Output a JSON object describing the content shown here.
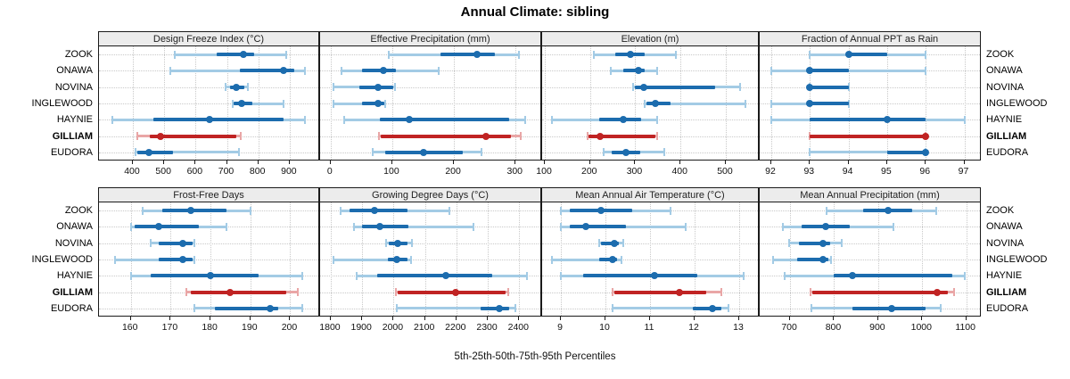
{
  "title": "Annual Climate: sibling",
  "caption": "5th-25th-50th-75th-95th Percentiles",
  "sites": [
    "ZOOK",
    "ONAWA",
    "NOVINA",
    "INGLEWOOD",
    "HAYNIE",
    "GILLIAM",
    "EUDORA"
  ],
  "highlight_site": "GILLIAM",
  "percentile_labels": [
    "5th",
    "25th",
    "50th",
    "75th",
    "95th"
  ],
  "colors": {
    "series_blue": "#1c6cae",
    "series_blue_light": "#a3cbe5",
    "highlight_red": "#c02323",
    "highlight_red_light": "#e9a6a6",
    "strip_background": "#ececec",
    "panel_border": "#1a1a1a",
    "gridline": "#c9c9c9"
  },
  "chart_data": [
    {
      "type": "dotplot-interval",
      "title": "Design Freeze Index (°C)",
      "row": 0,
      "col": 0,
      "xlim": [
        292,
        997
      ],
      "ticks": [
        400,
        500,
        600,
        700,
        800,
        900
      ],
      "values": {
        "ZOOK": [
          535,
          668,
          753,
          788,
          888
        ],
        "ONAWA": [
          520,
          740,
          880,
          915,
          950
        ],
        "NOVINA": [
          697,
          711,
          730,
          755,
          766
        ],
        "INGLEWOOD": [
          718,
          721,
          748,
          780,
          881
        ],
        "HAYNIE": [
          335,
          465,
          645,
          880,
          950
        ],
        "GILLIAM": [
          413,
          455,
          488,
          730,
          744
        ],
        "EUDORA": [
          409,
          415,
          450,
          528,
          737
        ]
      }
    },
    {
      "type": "dotplot-interval",
      "title": "Effective Precipitation (mm)",
      "row": 0,
      "col": 1,
      "xlim": [
        -17,
        343
      ],
      "ticks": [
        0,
        100,
        200,
        300
      ],
      "values": {
        "ZOOK": [
          94,
          178,
          238,
          267,
          306
        ],
        "ONAWA": [
          17,
          51,
          86,
          106,
          176
        ],
        "NOVINA": [
          4,
          46,
          77,
          101,
          105
        ],
        "INGLEWOOD": [
          4,
          51,
          77,
          87,
          89
        ],
        "HAYNIE": [
          22,
          80,
          128,
          290,
          316
        ],
        "GILLIAM": [
          78,
          82,
          252,
          293,
          309
        ],
        "EUDORA": [
          68,
          88,
          151,
          215,
          245
        ]
      }
    },
    {
      "type": "dotplot-interval",
      "title": "Elevation (m)",
      "row": 0,
      "col": 2,
      "xlim": [
        94,
        575
      ],
      "ticks": [
        100,
        200,
        300,
        400,
        500
      ],
      "values": {
        "ZOOK": [
          208,
          255,
          290,
          320,
          389
        ],
        "ONAWA": [
          245,
          274,
          306,
          321,
          349
        ],
        "NOVINA": [
          296,
          300,
          319,
          477,
          531
        ],
        "INGLEWOOD": [
          321,
          325,
          344,
          377,
          543
        ],
        "HAYNIE": [
          116,
          221,
          273,
          313,
          349
        ],
        "GILLIAM": [
          194,
          197,
          223,
          345,
          348
        ],
        "EUDORA": [
          231,
          248,
          280,
          310,
          364
        ]
      }
    },
    {
      "type": "dotplot-interval",
      "title": "Fraction of Annual PPT as Rain",
      "row": 0,
      "col": 3,
      "xlim": [
        91.7,
        97.45
      ],
      "ticks": [
        92,
        93,
        94,
        95,
        96,
        97
      ],
      "values": {
        "ZOOK": [
          93,
          94,
          94,
          95,
          96
        ],
        "ONAWA": [
          92,
          93,
          93,
          94,
          96
        ],
        "NOVINA": [
          93,
          93,
          93,
          94,
          94
        ],
        "INGLEWOOD": [
          92,
          93,
          93,
          94,
          94
        ],
        "HAYNIE": [
          92,
          93,
          95,
          96,
          97
        ],
        "GILLIAM": [
          93,
          93,
          96,
          96,
          96
        ],
        "EUDORA": [
          93,
          95,
          96,
          96,
          96
        ]
      }
    },
    {
      "type": "dotplot-interval",
      "title": "Frost-Free Days",
      "row": 1,
      "col": 0,
      "xlim": [
        152,
        207.5
      ],
      "ticks": [
        160,
        170,
        180,
        190,
        200
      ],
      "values": {
        "ZOOK": [
          163,
          168,
          175,
          184,
          190
        ],
        "ONAWA": [
          160,
          161,
          167,
          177,
          184
        ],
        "NOVINA": [
          165,
          167,
          173,
          175.5,
          176
        ],
        "INGLEWOOD": [
          156,
          167,
          173,
          175.5,
          176
        ],
        "HAYNIE": [
          160,
          165,
          180,
          192,
          203
        ],
        "GILLIAM": [
          174,
          175,
          185,
          199,
          202
        ],
        "EUDORA": [
          176,
          181,
          195,
          197,
          203
        ]
      }
    },
    {
      "type": "dotplot-interval",
      "title": "Growing Degree Days (°C)",
      "row": 1,
      "col": 1,
      "xlim": [
        1766,
        2473
      ],
      "ticks": [
        1800,
        1900,
        2000,
        2100,
        2200,
        2300,
        2400
      ],
      "values": {
        "ZOOK": [
          1830,
          1860,
          1940,
          2045,
          2178
        ],
        "ONAWA": [
          1874,
          1900,
          1957,
          2048,
          2254
        ],
        "NOVINA": [
          1976,
          1986,
          2012,
          2043,
          2059
        ],
        "INGLEWOOD": [
          1808,
          1981,
          2010,
          2043,
          2055
        ],
        "HAYNIE": [
          1881,
          1948,
          2165,
          2314,
          2424
        ],
        "GILLIAM": [
          2007,
          2012,
          2197,
          2358,
          2365
        ],
        "EUDORA": [
          2010,
          2276,
          2338,
          2367,
          2388
        ]
      }
    },
    {
      "type": "dotplot-interval",
      "title": "Mean Annual Air Temperature (°C)",
      "row": 1,
      "col": 2,
      "xlim": [
        8.58,
        13.46
      ],
      "ticks": [
        9,
        10,
        11,
        12,
        13
      ],
      "values": {
        "ZOOK": [
          9.0,
          9.2,
          9.9,
          10.6,
          11.45
        ],
        "ONAWA": [
          9.0,
          9.2,
          9.55,
          10.45,
          11.8
        ],
        "NOVINA": [
          9.85,
          9.9,
          10.2,
          10.3,
          10.4
        ],
        "INGLEWOOD": [
          8.8,
          9.85,
          10.15,
          10.25,
          10.35
        ],
        "HAYNIE": [
          9.0,
          9.5,
          11.1,
          12.05,
          13.1
        ],
        "GILLIAM": [
          10.15,
          10.2,
          11.65,
          12.25,
          12.6
        ],
        "EUDORA": [
          10.15,
          11.95,
          12.4,
          12.6,
          12.75
        ]
      }
    },
    {
      "type": "dotplot-interval",
      "title": "Mean Annual Precipitation (mm)",
      "row": 1,
      "col": 3,
      "xlim": [
        631,
        1135
      ],
      "ticks": [
        700,
        800,
        900,
        1000,
        1100
      ],
      "values": {
        "ZOOK": [
          782,
          865,
          922,
          977,
          1032
        ],
        "ONAWA": [
          684,
          726,
          781,
          835,
          935
        ],
        "NOVINA": [
          697,
          720,
          774,
          791,
          817
        ],
        "INGLEWOOD": [
          661,
          716,
          775,
          787,
          793
        ],
        "HAYNIE": [
          688,
          798,
          842,
          1069,
          1097
        ],
        "GILLIAM": [
          747,
          750,
          1033,
          1059,
          1072
        ],
        "EUDORA": [
          748,
          842,
          931,
          1008,
          1042
        ]
      }
    }
  ]
}
